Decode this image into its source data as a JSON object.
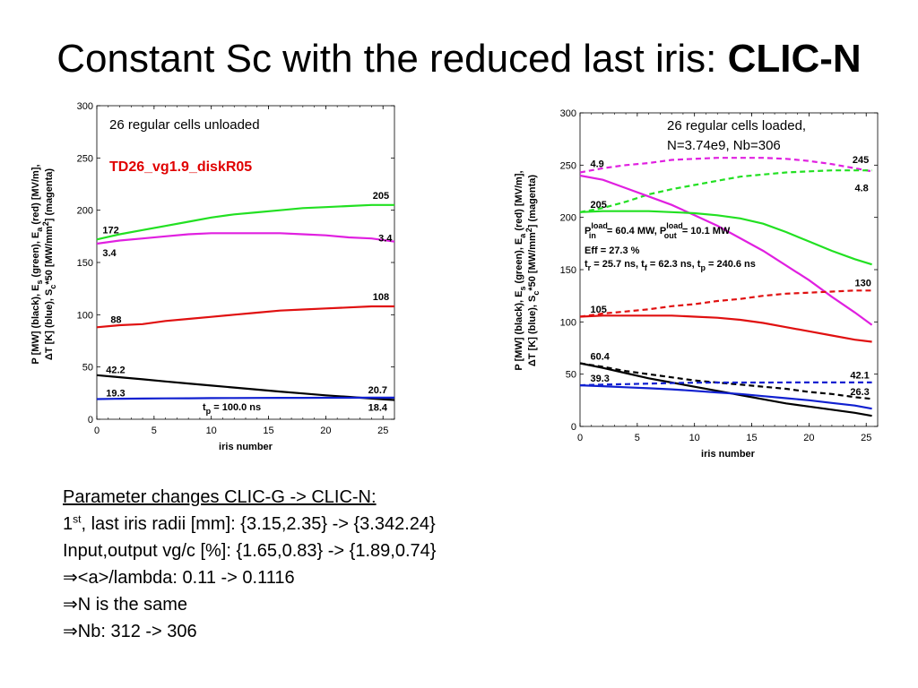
{
  "title": {
    "main": "Constant Sc with the reduced last iris: ",
    "bold": "CLIC-N"
  },
  "chart_data": [
    {
      "type": "line",
      "xlabel": "iris number",
      "ylabel_line1": "P [MW] (black), E",
      "ylabel_line1_sub1": "s",
      "ylabel_line1_mid": " (green), E",
      "ylabel_line1_sub2": "a",
      "ylabel_line1_end": " (red) [MV/m],",
      "ylabel_line2_pre": "ΔT [K] (blue), S",
      "ylabel_line2_sub": "c",
      "ylabel_line2_end": "*50 [MW/mm",
      "ylabel_line2_sup": "2",
      "ylabel_line2_tail": "] (magenta)",
      "xlim": [
        0,
        26
      ],
      "ylim": [
        0,
        300
      ],
      "xticks": [
        "0",
        "5",
        "10",
        "15",
        "20",
        "25"
      ],
      "yticks": [
        "0",
        "50",
        "100",
        "150",
        "200",
        "250",
        "300"
      ],
      "annotation_condition": "26 regular cells unloaded",
      "annotation_structure": "TD26_vg1.9_diskR05",
      "annotation_tp_pre": "t",
      "annotation_tp_sub": "p",
      "annotation_tp_post": " = 100.0 ns",
      "series": [
        {
          "color": "green",
          "style": "solid",
          "x": [
            0,
            2,
            4,
            6,
            8,
            10,
            12,
            14,
            16,
            18,
            20,
            22,
            24,
            26
          ],
          "y": [
            172,
            177,
            181,
            185,
            189,
            193,
            196,
            198,
            200,
            202,
            203,
            204,
            205,
            205
          ]
        },
        {
          "color": "magenta",
          "style": "solid",
          "x": [
            0,
            2,
            4,
            6,
            8,
            10,
            12,
            14,
            16,
            18,
            20,
            22,
            24,
            26
          ],
          "y": [
            168,
            171,
            173,
            175,
            177,
            178,
            178,
            178,
            178,
            177,
            176,
            174,
            173,
            170
          ]
        },
        {
          "color": "red",
          "style": "solid",
          "x": [
            0,
            2,
            4,
            6,
            8,
            10,
            12,
            14,
            16,
            18,
            20,
            22,
            24,
            26
          ],
          "y": [
            88,
            90,
            91,
            94,
            96,
            98,
            100,
            102,
            104,
            105,
            106,
            107,
            108,
            108
          ]
        },
        {
          "color": "black",
          "style": "solid",
          "x": [
            0,
            2,
            4,
            6,
            8,
            10,
            12,
            14,
            16,
            18,
            20,
            22,
            24,
            26
          ],
          "y": [
            42.2,
            40.2,
            38.2,
            36.2,
            34.2,
            32.2,
            30.3,
            28.4,
            26.5,
            24.7,
            22.9,
            21.4,
            19.8,
            18.4
          ]
        },
        {
          "color": "blue",
          "style": "solid",
          "x": [
            0,
            2,
            4,
            6,
            8,
            10,
            12,
            14,
            16,
            18,
            20,
            22,
            24,
            26
          ],
          "y": [
            19.3,
            19.6,
            19.8,
            20,
            20.1,
            20.2,
            20.3,
            20.4,
            20.5,
            20.5,
            20.6,
            20.6,
            20.7,
            20.7
          ]
        }
      ],
      "data_labels": [
        {
          "text": "205",
          "x": 24.1,
          "y": 211
        },
        {
          "text": "172",
          "x": 0.5,
          "y": 178
        },
        {
          "text": "3.4",
          "x": 0.5,
          "y": 156
        },
        {
          "text": "3.4",
          "x": 24.6,
          "y": 170
        },
        {
          "text": "108",
          "x": 24.1,
          "y": 114
        },
        {
          "text": "88",
          "x": 1.2,
          "y": 92
        },
        {
          "text": "42.2",
          "x": 0.8,
          "y": 44
        },
        {
          "text": "20.7",
          "x": 23.7,
          "y": 25
        },
        {
          "text": "19.3",
          "x": 0.8,
          "y": 22
        },
        {
          "text": "18.4",
          "x": 23.7,
          "y": 8
        }
      ]
    },
    {
      "type": "line",
      "xlabel": "iris number",
      "xlim": [
        0,
        26
      ],
      "ylim": [
        0,
        300
      ],
      "xticks": [
        "0",
        "5",
        "10",
        "15",
        "20",
        "25"
      ],
      "yticks": [
        "0",
        "50",
        "100",
        "150",
        "200",
        "250",
        "300"
      ],
      "annotation_condition_line1": "26 regular cells loaded,",
      "annotation_condition_line2": "N=3.74e9, Nb=306",
      "annotation_pin": "P",
      "annotation_pin_sup": "load",
      "annotation_pin_sub": "in",
      "annotation_pin_val": " =  60.4 MW, P",
      "annotation_pout_sup": "load",
      "annotation_pout_sub": "out",
      "annotation_pout_val": " =  10.1 MW",
      "annotation_eff": "Eff = 27.3 %",
      "annotation_times": "t",
      "annotation_times_sub_r": "r",
      "annotation_times_r_val": " = 25.7 ns, t",
      "annotation_times_sub_f": "f",
      "annotation_times_f_val": " = 62.3 ns, t",
      "annotation_times_sub_p": "p",
      "annotation_times_p_val": " = 240.6 ns",
      "series": [
        {
          "color": "magenta",
          "style": "dashed",
          "x": [
            0,
            2,
            4,
            6,
            8,
            10,
            12,
            14,
            16,
            18,
            20,
            22,
            24,
            25.5
          ],
          "y": [
            243,
            247,
            250,
            252,
            255,
            256,
            257,
            257,
            257,
            256,
            254,
            251,
            247,
            244
          ]
        },
        {
          "color": "green",
          "style": "dashed",
          "x": [
            0,
            2,
            4,
            6,
            8,
            10,
            12,
            14,
            16,
            18,
            20,
            22,
            24,
            25.5
          ],
          "y": [
            205,
            209,
            215,
            222,
            227,
            231,
            235,
            239,
            241,
            243,
            244,
            245,
            245,
            245
          ]
        },
        {
          "color": "magenta",
          "style": "solid",
          "x": [
            0,
            2,
            4,
            6,
            8,
            10,
            12,
            14,
            16,
            18,
            20,
            22,
            24,
            25.5
          ],
          "y": [
            240,
            236,
            228,
            220,
            212,
            202,
            192,
            180,
            168,
            154,
            140,
            124,
            109,
            97
          ]
        },
        {
          "color": "green",
          "style": "solid",
          "x": [
            0,
            2,
            4,
            6,
            8,
            10,
            12,
            14,
            16,
            18,
            20,
            22,
            24,
            25.5
          ],
          "y": [
            205,
            206,
            206,
            206,
            205,
            204,
            202,
            199,
            194,
            186,
            177,
            168,
            160,
            155
          ]
        },
        {
          "color": "red",
          "style": "dashed",
          "x": [
            0,
            2,
            4,
            6,
            8,
            10,
            12,
            14,
            16,
            18,
            20,
            22,
            24,
            25.5
          ],
          "y": [
            105,
            108,
            110,
            112,
            115,
            117,
            120,
            122,
            125,
            127,
            128,
            129,
            130,
            130
          ]
        },
        {
          "color": "red",
          "style": "solid",
          "x": [
            0,
            2,
            4,
            6,
            8,
            10,
            12,
            14,
            16,
            18,
            20,
            22,
            24,
            25.5
          ],
          "y": [
            105,
            106,
            106,
            106,
            106,
            105,
            104,
            102,
            99,
            95,
            91,
            87,
            83,
            81
          ]
        },
        {
          "color": "black",
          "style": "dashed",
          "x": [
            0,
            2,
            4,
            6,
            8,
            10,
            12,
            14,
            16,
            18,
            20,
            22,
            24,
            25.5
          ],
          "y": [
            60.4,
            57,
            53,
            50,
            47,
            44,
            42,
            40,
            38,
            36,
            33,
            31,
            28,
            26.3
          ]
        },
        {
          "color": "black",
          "style": "solid",
          "x": [
            0,
            2,
            4,
            6,
            8,
            10,
            12,
            14,
            16,
            18,
            20,
            22,
            24,
            25.5
          ],
          "y": [
            60.4,
            56,
            51,
            46,
            42,
            38,
            34,
            30,
            26,
            22,
            19,
            16,
            13,
            10.1
          ]
        },
        {
          "color": "blue",
          "style": "dashed",
          "x": [
            0,
            2,
            4,
            6,
            8,
            10,
            12,
            14,
            16,
            18,
            20,
            22,
            24,
            25.5
          ],
          "y": [
            39.3,
            40,
            40.5,
            41,
            41.5,
            41.8,
            42,
            42,
            42,
            42.1,
            42.1,
            42.1,
            42.1,
            42.1
          ]
        },
        {
          "color": "blue",
          "style": "solid",
          "x": [
            0,
            2,
            4,
            6,
            8,
            10,
            12,
            14,
            16,
            18,
            20,
            22,
            24,
            25.5
          ],
          "y": [
            39.3,
            38.5,
            37.5,
            36.5,
            35.5,
            34,
            32.5,
            31,
            29,
            27,
            25,
            22.5,
            20,
            17
          ]
        }
      ],
      "data_labels": [
        {
          "text": "4.9",
          "x": 0.9,
          "y": 248
        },
        {
          "text": "245",
          "x": 23.8,
          "y": 252
        },
        {
          "text": "4.8",
          "x": 24,
          "y": 225
        },
        {
          "text": "205",
          "x": 0.9,
          "y": 209
        },
        {
          "text": "130",
          "x": 24,
          "y": 134
        },
        {
          "text": "105",
          "x": 0.9,
          "y": 109
        },
        {
          "text": "60.4",
          "x": 0.9,
          "y": 64
        },
        {
          "text": "42.1",
          "x": 23.6,
          "y": 46
        },
        {
          "text": "39.3",
          "x": 0.9,
          "y": 43
        },
        {
          "text": "26.3",
          "x": 23.6,
          "y": 30
        }
      ]
    }
  ],
  "notes": {
    "heading": "Parameter changes CLIC-G -> CLIC-N:",
    "line1_pre": "1",
    "line1_sup": "st",
    "line1_post": ", last iris radii [mm]: {3.15,2.35} -> {3.342.24}",
    "line2": "Input,output vg/c [%]: {1.65,0.83} -> {1.89,0.74}",
    "line3_arrow": "⇒",
    "line3": "<a>/lambda: 0.11 -> 0.1116",
    "line4_arrow": "⇒",
    "line4": "N is the same",
    "line5_arrow": "⇒",
    "line5": "Nb: 312 -> 306"
  }
}
